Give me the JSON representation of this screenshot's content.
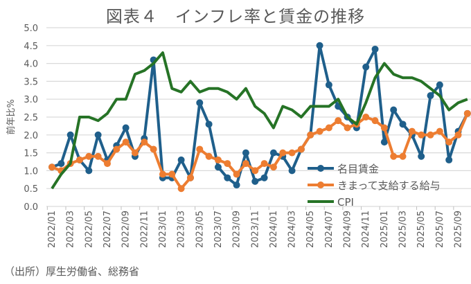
{
  "chart_data": {
    "type": "line",
    "title": "図表４　インフレ率と賃金の推移",
    "ylabel": "前年比%",
    "xlabel": "",
    "ylim": [
      0,
      5
    ],
    "yticks": [
      "0.0",
      "0.5",
      "1.0",
      "1.5",
      "2.0",
      "2.5",
      "3.0",
      "3.5",
      "4.0",
      "4.5",
      "5.0"
    ],
    "xtick_labels": [
      "2022/01",
      "2022/03",
      "2022/05",
      "2022/07",
      "2022/09",
      "2022/11",
      "2023/01",
      "2023/03",
      "2023/05",
      "2023/07",
      "2023/09",
      "2023/11",
      "2024/01",
      "2024/03",
      "2024/05",
      "2024/07",
      "2024/09",
      "2024/11",
      "2025/01",
      "2025/03",
      "2025/05",
      "2025/07",
      "2025/09"
    ],
    "x_start": "2022/01",
    "x_end": "2025/10",
    "grid": true,
    "legend_position": "bottom-right",
    "series": [
      {
        "name": "名目賃金",
        "color": "#1f5f8b",
        "markers": true,
        "values": [
          1.1,
          1.2,
          2.0,
          1.3,
          1.0,
          2.0,
          1.3,
          1.7,
          2.2,
          1.4,
          1.9,
          4.1,
          0.8,
          0.8,
          1.3,
          0.8,
          2.9,
          2.3,
          1.1,
          0.8,
          0.6,
          1.5,
          0.7,
          0.8,
          1.5,
          1.4,
          1.0,
          1.6,
          2.0,
          4.5,
          3.4,
          2.8,
          2.5,
          2.2,
          3.9,
          4.4,
          1.8,
          2.7,
          2.3,
          2.0,
          1.4,
          3.1,
          3.4,
          1.3,
          2.1,
          2.6
        ]
      },
      {
        "name": "きまって支給する給与",
        "color": "#ed7d31",
        "markers": true,
        "values": [
          1.1,
          1.0,
          1.2,
          1.3,
          1.4,
          1.4,
          1.2,
          1.6,
          1.8,
          1.5,
          1.8,
          1.6,
          0.9,
          0.9,
          0.5,
          0.8,
          1.6,
          1.4,
          1.3,
          1.2,
          0.9,
          1.2,
          1.0,
          1.2,
          1.1,
          1.5,
          1.5,
          1.6,
          2.0,
          2.1,
          2.2,
          2.4,
          2.2,
          2.3,
          2.5,
          2.4,
          2.2,
          1.4,
          1.4,
          2.1,
          2.0,
          2.0,
          2.1,
          1.8,
          2.0,
          2.6
        ]
      },
      {
        "name": "CPI",
        "color": "#267326",
        "markers": false,
        "values": [
          0.5,
          0.9,
          1.2,
          2.5,
          2.5,
          2.4,
          2.6,
          3.0,
          3.0,
          3.7,
          3.8,
          4.0,
          4.3,
          3.3,
          3.2,
          3.5,
          3.2,
          3.3,
          3.3,
          3.2,
          3.0,
          3.3,
          2.8,
          2.6,
          2.2,
          2.8,
          2.7,
          2.5,
          2.8,
          2.8,
          2.8,
          3.0,
          2.5,
          2.3,
          2.9,
          3.6,
          4.0,
          3.7,
          3.6,
          3.6,
          3.5,
          3.3,
          3.1,
          2.7,
          2.9,
          3.0
        ]
      }
    ]
  },
  "source": "（出所）厚生労働省、総務省"
}
